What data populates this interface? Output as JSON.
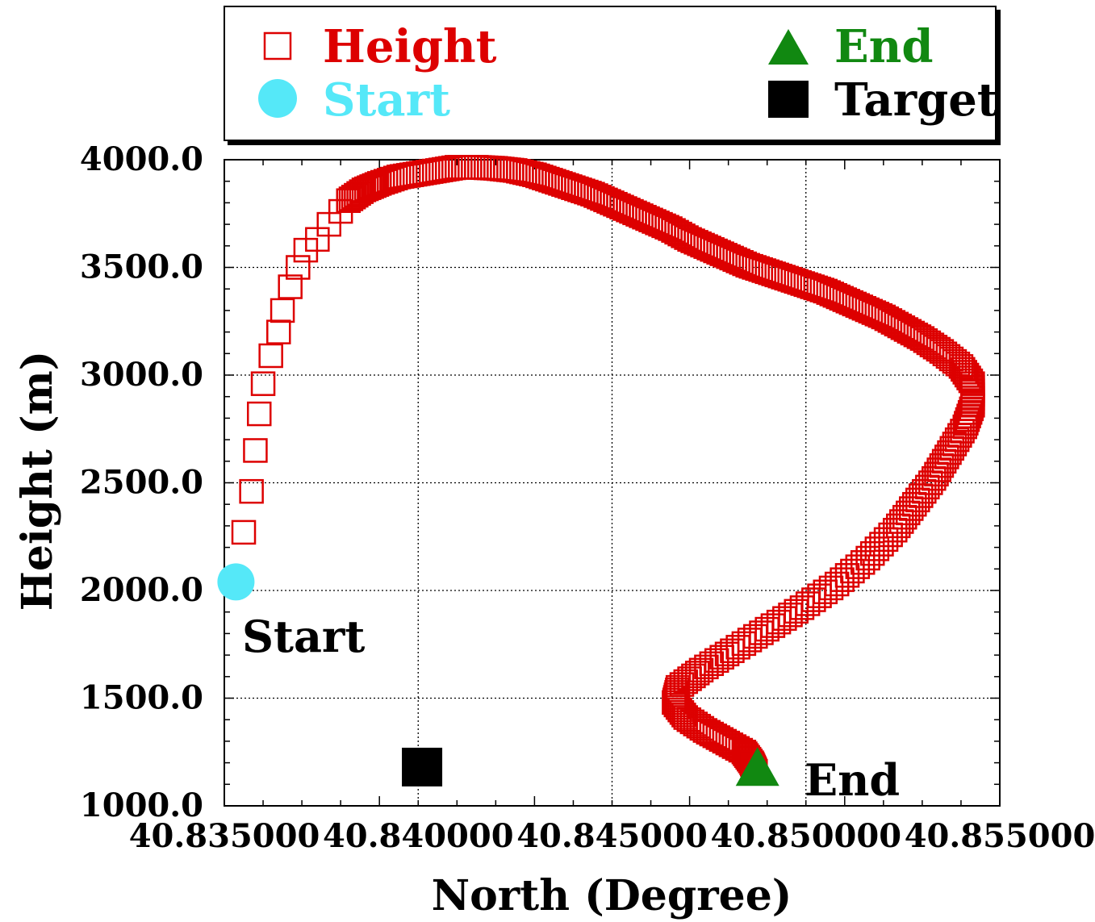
{
  "chart_data": {
    "type": "scatter",
    "title": "",
    "xlabel": "North (Degree)",
    "ylabel": "Height (m)",
    "xlim": [
      40.835,
      40.855
    ],
    "ylim": [
      1000,
      4000
    ],
    "x_ticks": [
      "40.835000",
      "40.840000",
      "40.845000",
      "40.850000",
      "40.855000"
    ],
    "y_ticks": [
      "1000.0",
      "1500.0",
      "2000.0",
      "2500.0",
      "3000.0",
      "3500.0",
      "4000.0"
    ],
    "grid": true,
    "legend_placement": "top, outside plot",
    "colors": {
      "height": "#dd0000",
      "start": "#55e8f8",
      "end": "#118811",
      "target": "#000000"
    },
    "series": [
      {
        "name": "Height",
        "marker": "open-square",
        "points": [
          [
            40.8355,
            2270
          ],
          [
            40.8357,
            2460
          ],
          [
            40.8358,
            2650
          ],
          [
            40.8359,
            2820
          ],
          [
            40.836,
            2960
          ],
          [
            40.8362,
            3090
          ],
          [
            40.8364,
            3200
          ],
          [
            40.8365,
            3300
          ],
          [
            40.8367,
            3410
          ],
          [
            40.8369,
            3500
          ],
          [
            40.8371,
            3580
          ],
          [
            40.8374,
            3630
          ],
          [
            40.8377,
            3700
          ],
          [
            40.838,
            3760
          ],
          [
            40.8382,
            3810
          ],
          [
            40.8386,
            3860
          ],
          [
            40.839,
            3890
          ],
          [
            40.8395,
            3920
          ],
          [
            40.84,
            3935
          ],
          [
            40.8405,
            3950
          ],
          [
            40.841,
            3965
          ],
          [
            40.8415,
            3965
          ],
          [
            40.842,
            3960
          ],
          [
            40.8425,
            3950
          ],
          [
            40.843,
            3930
          ],
          [
            40.8435,
            3900
          ],
          [
            40.844,
            3870
          ],
          [
            40.8445,
            3840
          ],
          [
            40.845,
            3800
          ],
          [
            40.8455,
            3760
          ],
          [
            40.846,
            3720
          ],
          [
            40.8465,
            3680
          ],
          [
            40.847,
            3630
          ],
          [
            40.8475,
            3590
          ],
          [
            40.848,
            3550
          ],
          [
            40.8485,
            3510
          ],
          [
            40.849,
            3480
          ],
          [
            40.8495,
            3450
          ],
          [
            40.85,
            3420
          ],
          [
            40.8505,
            3390
          ],
          [
            40.851,
            3350
          ],
          [
            40.8515,
            3310
          ],
          [
            40.852,
            3270
          ],
          [
            40.8525,
            3220
          ],
          [
            40.853,
            3170
          ],
          [
            40.8535,
            3110
          ],
          [
            40.854,
            3040
          ],
          [
            40.8543,
            2960
          ],
          [
            40.8543,
            2860
          ],
          [
            40.8541,
            2760
          ],
          [
            40.8537,
            2640
          ],
          [
            40.8533,
            2520
          ],
          [
            40.8528,
            2400
          ],
          [
            40.8523,
            2280
          ],
          [
            40.8516,
            2150
          ],
          [
            40.8508,
            2030
          ],
          [
            40.8499,
            1920
          ],
          [
            40.849,
            1820
          ],
          [
            40.8481,
            1720
          ],
          [
            40.8473,
            1630
          ],
          [
            40.8467,
            1550
          ],
          [
            40.8466,
            1480
          ],
          [
            40.8469,
            1410
          ],
          [
            40.8474,
            1350
          ],
          [
            40.8479,
            1300
          ],
          [
            40.8484,
            1250
          ],
          [
            40.8486,
            1200
          ],
          [
            40.8487,
            1160
          ]
        ]
      },
      {
        "name": "Start",
        "marker": "filled-circle",
        "points": [
          [
            40.8353,
            2040
          ]
        ]
      },
      {
        "name": "End",
        "marker": "filled-triangle",
        "points": [
          [
            40.84875,
            1160
          ]
        ]
      },
      {
        "name": "Target",
        "marker": "filled-square",
        "points": [
          [
            40.8401,
            1180
          ]
        ]
      }
    ],
    "annotations": [
      "Start",
      "End"
    ]
  }
}
